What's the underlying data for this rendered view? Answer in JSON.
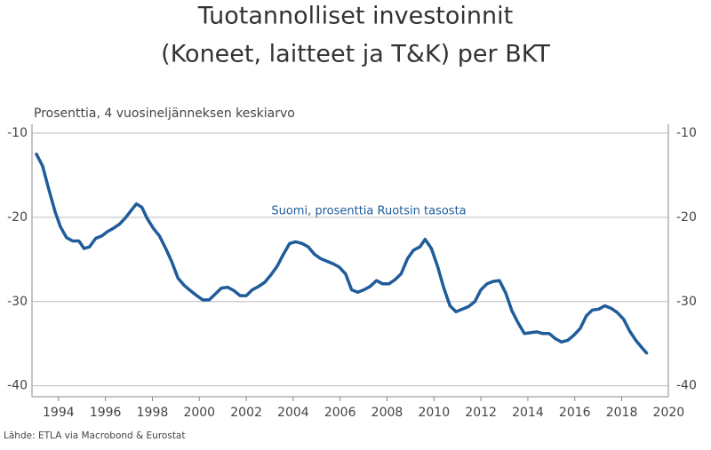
{
  "chart_data": {
    "type": "line",
    "title": [
      "Tuotannolliset investoinnit",
      "(Koneet, laitteet ja T&K) per BKT"
    ],
    "subtitle": "Prosenttia, 4 vuosineljänneksen keskiarvo",
    "source": "Lähde: ETLA via Macrobond & Eurostat",
    "xlim": [
      1992.87,
      2020.1
    ],
    "xticks": [
      1994,
      1996,
      1998,
      2000,
      2002,
      2004,
      2006,
      2008,
      2010,
      2012,
      2014,
      2016,
      2018,
      2020
    ],
    "ylim": [
      -41.3,
      -10
    ],
    "yticks": [
      -10,
      -20,
      -30,
      -40
    ],
    "grid": true,
    "series": [
      {
        "name": "Suomi, prosenttia Ruotsin tasosta",
        "color": "#1f5c99",
        "x": [
          1993.06,
          1993.32,
          1993.58,
          1993.85,
          1994.08,
          1994.34,
          1994.6,
          1994.87,
          1995.09,
          1995.32,
          1995.58,
          1995.85,
          1996.08,
          1996.34,
          1996.6,
          1996.87,
          1997.09,
          1997.32,
          1997.55,
          1997.77,
          1998.04,
          1998.3,
          1998.57,
          1998.83,
          1999.09,
          1999.36,
          1999.62,
          1999.89,
          2000.15,
          2000.42,
          2000.68,
          2000.94,
          2001.21,
          2001.47,
          2001.74,
          2002.0,
          2002.26,
          2002.53,
          2002.79,
          2003.06,
          2003.32,
          2003.58,
          2003.85,
          2004.11,
          2004.38,
          2004.64,
          2004.91,
          2005.17,
          2005.43,
          2005.7,
          2005.96,
          2006.23,
          2006.49,
          2006.75,
          2007.02,
          2007.28,
          2007.55,
          2007.81,
          2008.08,
          2008.34,
          2008.6,
          2008.87,
          2009.13,
          2009.4,
          2009.62,
          2009.89,
          2010.15,
          2010.42,
          2010.68,
          2010.94,
          2011.21,
          2011.47,
          2011.74,
          2012.0,
          2012.26,
          2012.53,
          2012.79,
          2013.06,
          2013.32,
          2013.58,
          2013.85,
          2014.11,
          2014.38,
          2014.64,
          2014.91,
          2015.17,
          2015.43,
          2015.7,
          2015.96,
          2016.23,
          2016.49,
          2016.75,
          2017.02,
          2017.28,
          2017.55,
          2017.81,
          2018.08,
          2018.34,
          2018.6,
          2018.87,
          2019.06
        ],
        "values": [
          -12.5,
          -13.9,
          -16.6,
          -19.3,
          -21.1,
          -22.4,
          -22.8,
          -22.8,
          -23.7,
          -23.5,
          -22.5,
          -22.2,
          -21.7,
          -21.3,
          -20.8,
          -20,
          -19.2,
          -18.4,
          -18.8,
          -20.1,
          -21.3,
          -22.2,
          -23.7,
          -25.3,
          -27.2,
          -28.1,
          -28.7,
          -29.3,
          -29.8,
          -29.8,
          -29.1,
          -28.4,
          -28.3,
          -28.7,
          -29.3,
          -29.3,
          -28.6,
          -28.2,
          -27.7,
          -26.8,
          -25.8,
          -24.4,
          -23.1,
          -22.9,
          -23.1,
          -23.5,
          -24.4,
          -24.9,
          -25.2,
          -25.5,
          -25.9,
          -26.7,
          -28.6,
          -28.9,
          -28.6,
          -28.2,
          -27.5,
          -27.9,
          -27.9,
          -27.4,
          -26.7,
          -24.9,
          -23.9,
          -23.5,
          -22.6,
          -23.7,
          -25.8,
          -28.4,
          -30.5,
          -31.2,
          -30.9,
          -30.6,
          -30,
          -28.6,
          -27.9,
          -27.6,
          -27.5,
          -29,
          -31.1,
          -32.5,
          -33.8,
          -33.7,
          -33.6,
          -33.8,
          -33.8,
          -34.4,
          -34.8,
          -34.6,
          -34,
          -33.2,
          -31.7,
          -31,
          -30.9,
          -30.5,
          -30.8,
          -31.3,
          -32.1,
          -33.5,
          -34.6,
          -35.5,
          -36.1
        ]
      }
    ]
  }
}
